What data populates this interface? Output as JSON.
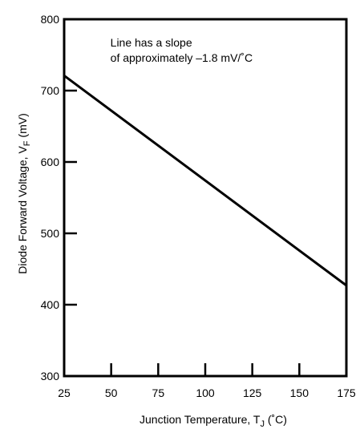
{
  "chart_data": {
    "type": "line",
    "title": "",
    "xlabel": "Junction Temperature, T",
    "xlabel_sub": "J",
    "xlabel_suffix": " (˚C)",
    "ylabel": "Diode Forward Voltage, V",
    "ylabel_sub": "F",
    "ylabel_suffix": " (mV)",
    "xlim": [
      25,
      175
    ],
    "ylim": [
      300,
      800
    ],
    "x_ticks": [
      25,
      50,
      75,
      100,
      125,
      150,
      175
    ],
    "y_ticks": [
      300,
      400,
      500,
      600,
      700,
      800
    ],
    "x_tick_labels": [
      "25",
      "50",
      "75",
      "100",
      "125",
      "150",
      "175"
    ],
    "y_tick_labels": [
      "300",
      "400",
      "500",
      "600",
      "700",
      "800"
    ],
    "grid": false,
    "series": [
      {
        "x": [
          25,
          175
        ],
        "y": [
          721,
          427
        ]
      }
    ],
    "annotation": {
      "line1": "Line has a slope",
      "line2": "of approximately –1.8 mV/˚C",
      "anchor_x": 50,
      "anchor_y": 762
    },
    "colors": {
      "line": "#000000",
      "axes": "#000000"
    }
  }
}
